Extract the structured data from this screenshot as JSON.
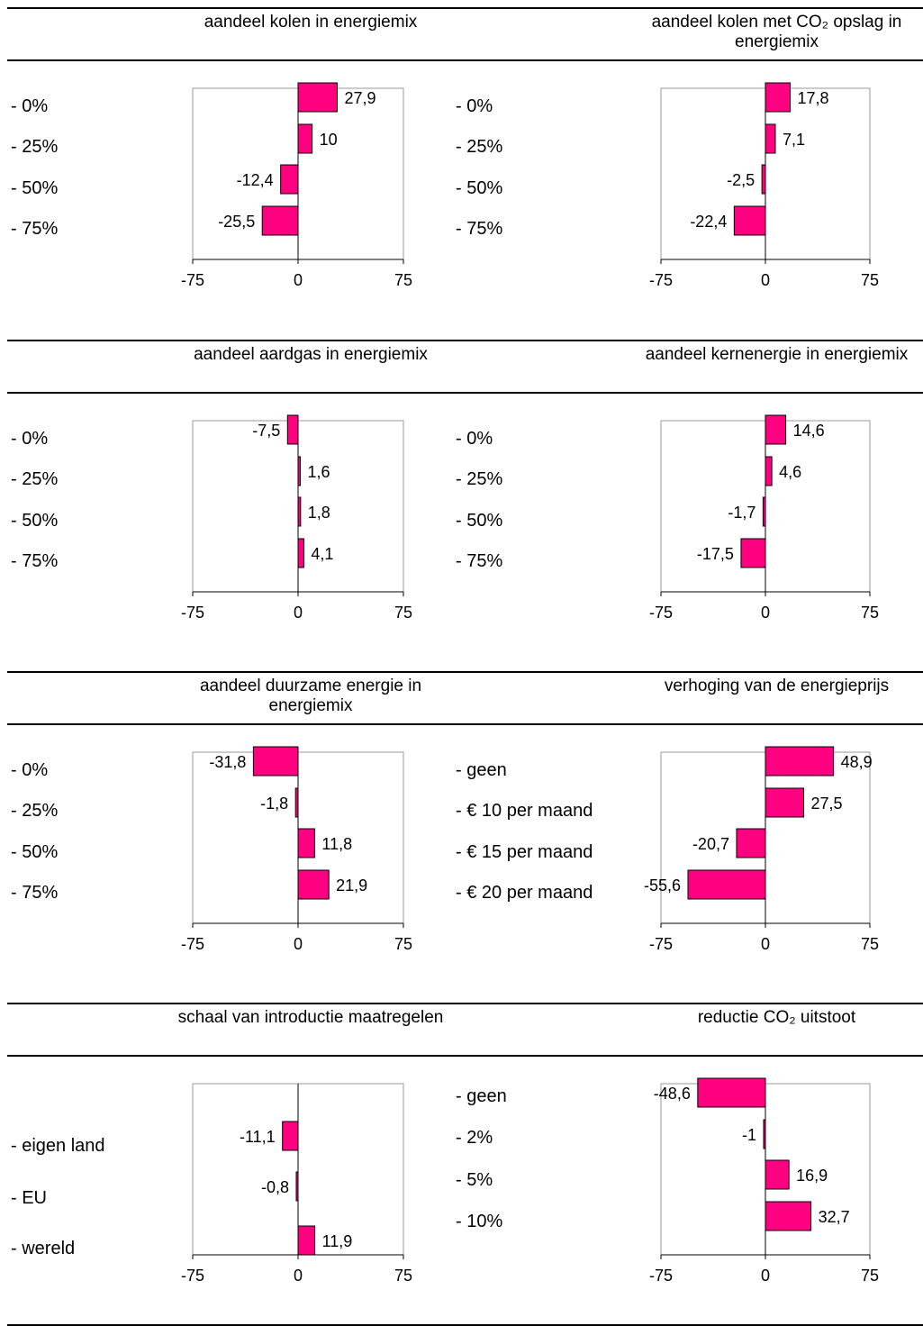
{
  "panels": [
    {
      "title": "aandeel kolen in energiemix",
      "chart_data": {
        "type": "bar",
        "orientation": "horizontal",
        "categories": [
          "- 0%",
          "- 25%",
          "- 50%",
          "- 75%"
        ],
        "values": [
          27.9,
          10,
          -12.4,
          -25.5
        ],
        "value_labels": [
          "27,9",
          "10",
          "-12,4",
          "-25,5"
        ],
        "xlim": [
          -75,
          75
        ],
        "xticks": [
          "-75",
          "0",
          "75"
        ],
        "bar_color": "#ff0080"
      }
    },
    {
      "title": "aandeel kolen met CO₂ opslag in energiemix",
      "chart_data": {
        "type": "bar",
        "orientation": "horizontal",
        "categories": [
          "- 0%",
          "- 25%",
          "- 50%",
          "- 75%"
        ],
        "values": [
          17.8,
          7.1,
          -2.5,
          -22.4
        ],
        "value_labels": [
          "17,8",
          "7,1",
          "-2,5",
          "-22,4"
        ],
        "xlim": [
          -75,
          75
        ],
        "xticks": [
          "-75",
          "0",
          "75"
        ],
        "bar_color": "#ff0080"
      }
    },
    {
      "title": "aandeel aardgas in energiemix",
      "chart_data": {
        "type": "bar",
        "orientation": "horizontal",
        "categories": [
          "- 0%",
          "- 25%",
          "- 50%",
          "- 75%"
        ],
        "values": [
          -7.5,
          1.6,
          1.8,
          4.1
        ],
        "value_labels": [
          "-7,5",
          "1,6",
          "1,8",
          "4,1"
        ],
        "xlim": [
          -75,
          75
        ],
        "xticks": [
          "-75",
          "0",
          "75"
        ],
        "bar_color": "#ff0080"
      }
    },
    {
      "title": "aandeel kernenergie in energiemix",
      "chart_data": {
        "type": "bar",
        "orientation": "horizontal",
        "categories": [
          "- 0%",
          "- 25%",
          "- 50%",
          "- 75%"
        ],
        "values": [
          14.6,
          4.6,
          -1.7,
          -17.5
        ],
        "value_labels": [
          "14,6",
          "4,6",
          "-1,7",
          "-17,5"
        ],
        "xlim": [
          -75,
          75
        ],
        "xticks": [
          "-75",
          "0",
          "75"
        ],
        "bar_color": "#ff0080"
      }
    },
    {
      "title": "aandeel duurzame energie in energiemix",
      "chart_data": {
        "type": "bar",
        "orientation": "horizontal",
        "categories": [
          "- 0%",
          "- 25%",
          "- 50%",
          "- 75%"
        ],
        "values": [
          -31.8,
          -1.8,
          11.8,
          21.9
        ],
        "value_labels": [
          "-31,8",
          "-1,8",
          "11,8",
          "21,9"
        ],
        "xlim": [
          -75,
          75
        ],
        "xticks": [
          "-75",
          "0",
          "75"
        ],
        "bar_color": "#ff0080"
      }
    },
    {
      "title": "verhoging van de energieprijs",
      "chart_data": {
        "type": "bar",
        "orientation": "horizontal",
        "categories": [
          "- geen",
          "- € 10 per maand",
          "- € 15 per maand",
          "- € 20 per maand"
        ],
        "values": [
          48.9,
          27.5,
          -20.7,
          -55.6
        ],
        "value_labels": [
          "48,9",
          "27,5",
          "-20,7",
          "-55,6"
        ],
        "xlim": [
          -75,
          75
        ],
        "xticks": [
          "-75",
          "0",
          "75"
        ],
        "bar_color": "#ff0080"
      }
    },
    {
      "title": "schaal van introductie maatregelen",
      "chart_data": {
        "type": "bar",
        "orientation": "horizontal",
        "categories": [
          "- eigen land",
          "- EU",
          "- wereld"
        ],
        "values": [
          -11.1,
          -0.8,
          11.9
        ],
        "value_labels": [
          "-11,1",
          "-0,8",
          "11,9"
        ],
        "xlim": [
          -75,
          75
        ],
        "xticks": [
          "-75",
          "0",
          "75"
        ],
        "bar_color": "#ff0080"
      }
    },
    {
      "title": "reductie CO₂ uitstoot",
      "chart_data": {
        "type": "bar",
        "orientation": "horizontal",
        "categories": [
          "- geen",
          "- 2%",
          "- 5%",
          "- 10%"
        ],
        "values": [
          -48.6,
          -1,
          16.9,
          32.7
        ],
        "value_labels": [
          "-48,6",
          "-1",
          "16,9",
          "32,7"
        ],
        "xlim": [
          -75,
          75
        ],
        "xticks": [
          "-75",
          "0",
          "75"
        ],
        "bar_color": "#ff0080"
      }
    }
  ]
}
